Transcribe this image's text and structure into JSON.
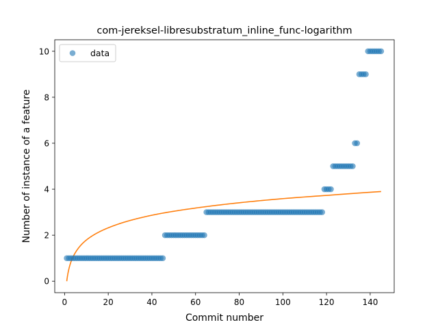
{
  "chart_data": {
    "type": "scatter",
    "title": "com-jereksel-libresubstratum_inline_func-logarithm",
    "xlabel": "Commit number",
    "ylabel": "Number of instance of a feature",
    "xlim": [
      -4.5,
      151
    ],
    "ylim": [
      -0.5,
      10.5
    ],
    "xticks": [
      0,
      20,
      40,
      60,
      80,
      100,
      120,
      140
    ],
    "yticks": [
      0,
      2,
      4,
      6,
      8,
      10
    ],
    "legend": {
      "label": "data",
      "placement": "top-left"
    },
    "colors": {
      "data": "#1f77b4",
      "fit": "#ff7f0e"
    },
    "series": [
      {
        "name": "data",
        "kind": "scatter",
        "segments": [
          {
            "x_start": 1,
            "x_end": 45,
            "y": 1
          },
          {
            "x_start": 46,
            "x_end": 64,
            "y": 2
          },
          {
            "x_start": 65,
            "x_end": 118,
            "y": 3
          },
          {
            "x_start": 119,
            "x_end": 122,
            "y": 4
          },
          {
            "x_start": 123,
            "x_end": 132,
            "y": 5
          },
          {
            "x_start": 133,
            "x_end": 134,
            "y": 6
          },
          {
            "x_start": 135,
            "x_end": 138,
            "y": 9
          },
          {
            "x_start": 139,
            "x_end": 145,
            "y": 10
          }
        ]
      },
      {
        "kind": "line",
        "x": [
          1,
          2,
          3,
          5,
          8,
          12,
          20,
          30,
          45,
          60,
          80,
          100,
          120,
          145
        ],
        "y": [
          0.0,
          0.54,
          0.86,
          1.25,
          1.62,
          1.93,
          2.32,
          2.64,
          2.96,
          3.18,
          3.41,
          3.59,
          3.73,
          3.9
        ]
      }
    ]
  }
}
